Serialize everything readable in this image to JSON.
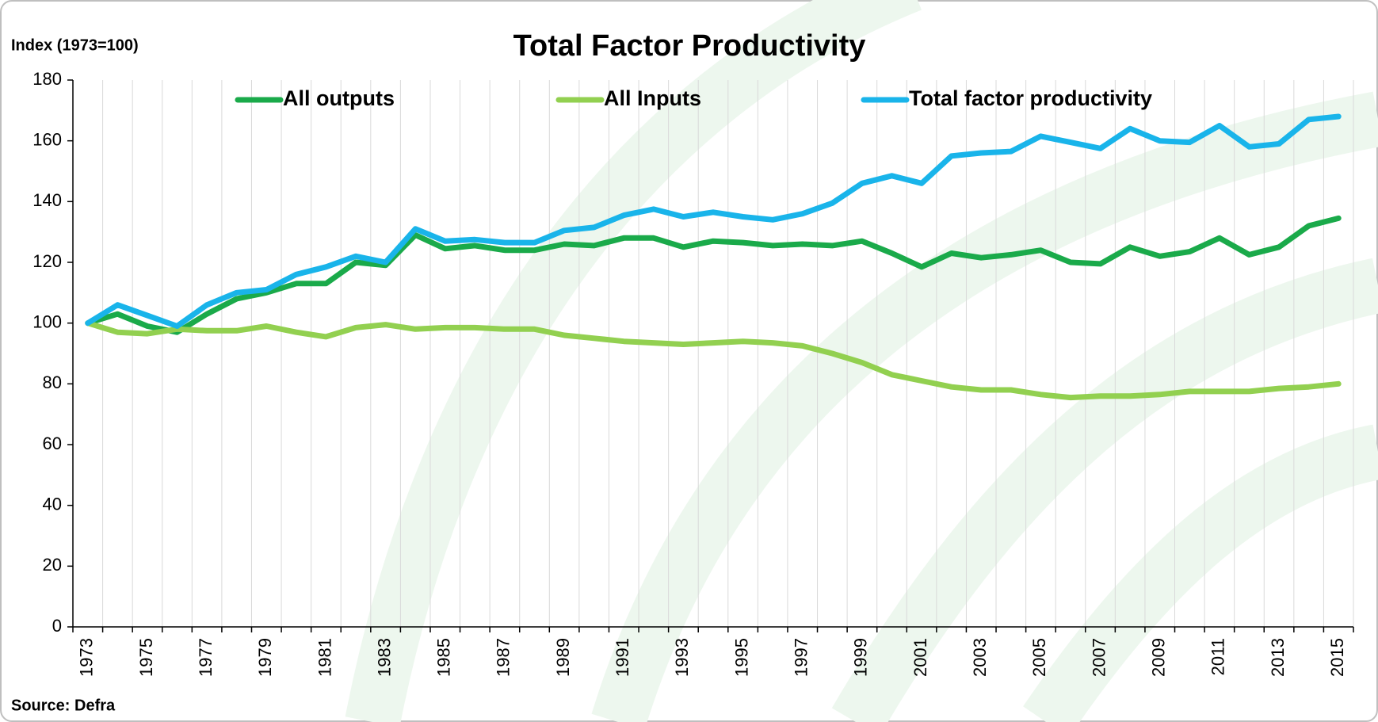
{
  "chart_data": {
    "type": "line",
    "title": "Total Factor Productivity",
    "y_axis_label": "Index (1973=100)",
    "source": "Source: Defra",
    "categories": [
      "1973",
      null,
      "1975",
      null,
      "1977",
      null,
      "1979",
      null,
      "1981",
      null,
      "1983",
      null,
      "1985",
      null,
      "1987",
      null,
      "1989",
      null,
      "1991",
      null,
      "1993",
      null,
      "1995",
      null,
      "1997",
      null,
      "1999",
      null,
      "2001",
      null,
      "2003",
      null,
      "2005",
      null,
      "2007",
      null,
      "2009",
      null,
      "2011",
      null,
      "2013",
      null,
      "2015"
    ],
    "series": [
      {
        "name": "All outputs",
        "color": "#1aaa4a",
        "values": [
          100,
          103,
          99,
          97,
          103,
          108,
          110,
          113,
          113,
          120,
          119,
          129,
          124.5,
          125.5,
          124,
          124,
          126,
          125.5,
          128,
          128,
          125,
          127,
          126.5,
          125.5,
          126,
          125.5,
          127,
          123,
          118.5,
          123,
          121.5,
          122.5,
          124,
          120,
          119.5,
          125,
          122,
          123.5,
          128,
          122.5,
          125,
          132,
          134.5
        ]
      },
      {
        "name": "All Inputs",
        "color": "#92d050",
        "values": [
          100,
          97,
          96.5,
          98,
          97.5,
          97.5,
          99,
          97,
          95.5,
          98.5,
          99.5,
          98,
          98.5,
          98.5,
          98,
          98,
          96,
          95,
          94,
          93.5,
          93,
          93.5,
          94,
          93.5,
          92.5,
          90,
          87,
          83,
          81,
          79,
          78,
          78,
          76.5,
          75.5,
          76,
          76,
          76.5,
          77.5,
          77.5,
          77.5,
          78.5,
          79,
          80
        ]
      },
      {
        "name": "Total factor productivity",
        "color": "#19b4ea",
        "values": [
          100,
          106,
          102.5,
          99,
          106,
          110,
          111,
          116,
          118.5,
          122,
          120,
          131,
          127,
          127.5,
          126.5,
          126.5,
          130.5,
          131.5,
          135.5,
          137.5,
          135,
          136.5,
          135,
          134,
          136,
          139.5,
          146,
          148.5,
          146,
          155,
          156,
          156.5,
          161.5,
          159.5,
          157.5,
          164,
          160,
          159.5,
          165,
          158,
          159,
          167,
          168
        ]
      }
    ],
    "ylim": [
      0,
      180
    ],
    "yticks": [
      0,
      20,
      40,
      60,
      80,
      100,
      120,
      140,
      160,
      180
    ],
    "grid": "x",
    "legend": "top"
  }
}
